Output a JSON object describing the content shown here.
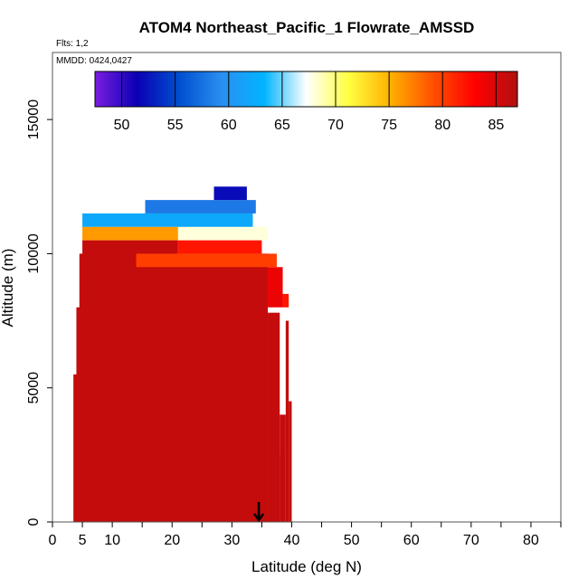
{
  "chart_data": {
    "type": "heatmap",
    "title": "ATOM4 Northeast_Pacific_1 Flowrate_AMSSD",
    "flights_label": "Flts: 1,2",
    "mmdd_label": "MMDD: 0424,0427",
    "xlabel": "Latitude (deg N)",
    "ylabel": "Altitude (m)",
    "xlim": [
      0,
      85
    ],
    "ylim": [
      0,
      17500
    ],
    "x_ticks": [
      0,
      5,
      10,
      20,
      30,
      40,
      50,
      60,
      70,
      80
    ],
    "x_minor_ticks": [
      15,
      25,
      35,
      45,
      55,
      65,
      75,
      85
    ],
    "y_ticks": [
      0,
      5000,
      10000,
      15000
    ],
    "colorbar": {
      "range": [
        47.5,
        87
      ],
      "ticks": [
        50,
        55,
        60,
        65,
        70,
        75,
        80,
        85
      ],
      "colors": [
        "#7a1ee0",
        "#0a00b4",
        "#0050d0",
        "#2a8ff0",
        "#00b4ff",
        "#ffffff",
        "#ffff40",
        "#ffb000",
        "#ff5000",
        "#ff0000",
        "#b01010"
      ]
    },
    "curtain_columns": [
      {
        "lat_range": [
          3.5,
          5.0
        ],
        "alt_top": 5500,
        "value": 86
      },
      {
        "lat_range": [
          4.0,
          5.5
        ],
        "alt_top": 8000,
        "value": 86
      },
      {
        "lat_range": [
          4.5,
          36.0
        ],
        "alt_top": 10000,
        "value": 86
      },
      {
        "lat_range": [
          36.0,
          38.0
        ],
        "alt_top": 7800,
        "value": 86
      },
      {
        "lat_range": [
          36.5,
          38.0
        ],
        "alt_top": 2500,
        "value": 86
      },
      {
        "lat_range": [
          38.0,
          39.0
        ],
        "alt_top": 4000,
        "value": 86
      },
      {
        "lat_range": [
          39.0,
          39.5
        ],
        "alt_top": 7500,
        "value": 86
      },
      {
        "lat_range": [
          39.5,
          40.0
        ],
        "alt_top": 4500,
        "value": 86
      }
    ],
    "upper_bands": [
      {
        "lat_range": [
          5.0,
          21.0
        ],
        "alt_range": [
          9500,
          10500
        ],
        "value": 86
      },
      {
        "lat_range": [
          21.0,
          36.0
        ],
        "alt_range": [
          9500,
          10000
        ],
        "value": 86
      },
      {
        "lat_range": [
          36.0,
          38.5
        ],
        "alt_range": [
          8000,
          9500
        ],
        "value": 84
      },
      {
        "lat_range": [
          38.5,
          39.5
        ],
        "alt_range": [
          8000,
          8500
        ],
        "value": 82
      },
      {
        "lat_range": [
          14.0,
          37.5
        ],
        "alt_range": [
          9500,
          10000
        ],
        "value": 80
      },
      {
        "lat_range": [
          21.0,
          35.0
        ],
        "alt_range": [
          10000,
          10500
        ],
        "value": 82
      },
      {
        "lat_range": [
          5.0,
          21.0
        ],
        "alt_range": [
          10500,
          11000
        ],
        "value": 76
      },
      {
        "lat_range": [
          21.0,
          36.0
        ],
        "alt_range": [
          10500,
          11000
        ],
        "value": 68
      },
      {
        "lat_range": [
          5.0,
          33.5
        ],
        "alt_range": [
          11000,
          11500
        ],
        "value": 62
      },
      {
        "lat_range": [
          15.5,
          34.0
        ],
        "alt_range": [
          11500,
          12000
        ],
        "value": 58
      },
      {
        "lat_range": [
          27.0,
          32.5
        ],
        "alt_range": [
          12000,
          12500
        ],
        "value": 52
      }
    ],
    "arrow_marker_lat": 34.5
  }
}
